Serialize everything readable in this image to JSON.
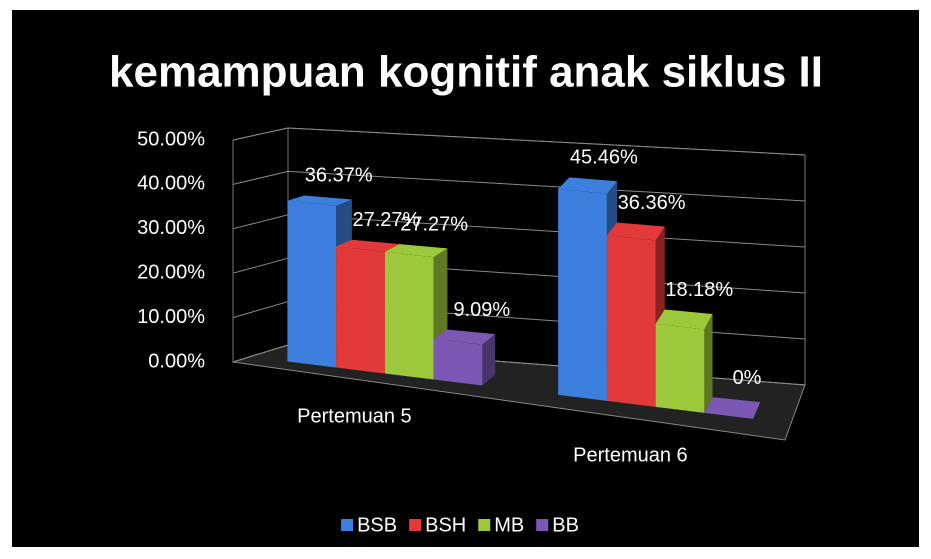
{
  "chart_data": {
    "type": "bar3d",
    "title": "kemampuan kognitif anak siklus II",
    "categories": [
      "Pertemuan 5",
      "Pertemuan 6"
    ],
    "series": [
      {
        "name": "BSB",
        "color": "#3d7fdc",
        "values": [
          36.37,
          45.46
        ],
        "value_labels": [
          "36.37%",
          "45.46%"
        ]
      },
      {
        "name": "BSH",
        "color": "#e2393a",
        "values": [
          27.27,
          36.36
        ],
        "value_labels": [
          "27.27%",
          "36.36%"
        ]
      },
      {
        "name": "MB",
        "color": "#9cc83c",
        "values": [
          27.27,
          18.18
        ],
        "value_labels": [
          "27.27%",
          "18.18%"
        ]
      },
      {
        "name": "BB",
        "color": "#7c57b4",
        "values": [
          9.09,
          0
        ],
        "value_labels": [
          "9.09%",
          "0%"
        ]
      }
    ],
    "ylim": [
      0,
      50
    ],
    "yticks": [
      {
        "value": 0,
        "label": "0.00%"
      },
      {
        "value": 10,
        "label": "10.00%"
      },
      {
        "value": 20,
        "label": "20.00%"
      },
      {
        "value": 30,
        "label": "30.00%"
      },
      {
        "value": 40,
        "label": "40.00%"
      },
      {
        "value": 50,
        "label": "50.00%"
      }
    ],
    "grid": true,
    "legend": "bottom"
  }
}
